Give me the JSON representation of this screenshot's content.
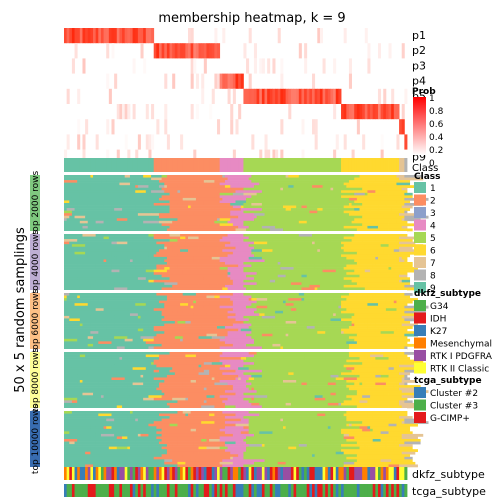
{
  "chart_data": {
    "type": "heatmap",
    "title": "membership heatmap, k = 9",
    "y_axis_title": "50 x 5 random samplings",
    "membership_rows": [
      "p1",
      "p2",
      "p3",
      "p4",
      "p5",
      "p6",
      "p7",
      "p8",
      "p9"
    ],
    "class_row_label": "Class",
    "sampling_groups": [
      {
        "label": "top 2000 rows",
        "color": "#7FC97F"
      },
      {
        "label": "top 4000 rows",
        "color": "#BEAED4"
      },
      {
        "label": "top 6000 rows",
        "color": "#FDC086"
      },
      {
        "label": "top 8000 rows",
        "color": "#FFFF99"
      },
      {
        "label": "top 10000 rows",
        "color": "#386CB0"
      }
    ],
    "class_segments": [
      {
        "cls": 1,
        "share": 0.26
      },
      {
        "cls": 2,
        "share": 0.19
      },
      {
        "cls": 4,
        "share": 0.07
      },
      {
        "cls": 5,
        "share": 0.29
      },
      {
        "cls": 6,
        "share": 0.17
      },
      {
        "cls": 7,
        "share": 0.015
      },
      {
        "cls": 8,
        "share": 0.005
      }
    ],
    "prob_legend": {
      "title": "Prob",
      "ticks": [
        "1",
        "0.8",
        "0.6",
        "0.4",
        "0.2",
        "0"
      ],
      "low_color": "#FFFFFF",
      "high_color": "#FF0000"
    },
    "class_legend": {
      "title": "Class",
      "items": [
        {
          "label": "1",
          "color": "#66C2A5"
        },
        {
          "label": "2",
          "color": "#FC8D62"
        },
        {
          "label": "3",
          "color": "#8DA0CB"
        },
        {
          "label": "4",
          "color": "#E78AC3"
        },
        {
          "label": "5",
          "color": "#A6D854"
        },
        {
          "label": "6",
          "color": "#FFD92F"
        },
        {
          "label": "7",
          "color": "#E5C494"
        },
        {
          "label": "8",
          "color": "#B3B3B3"
        },
        {
          "label": "9",
          "color": "#66C2A5"
        }
      ]
    },
    "dkfz_legend": {
      "title": "dkfz_subtype",
      "items": [
        {
          "label": "G34",
          "color": "#4DAF4A"
        },
        {
          "label": "IDH",
          "color": "#E41A1C"
        },
        {
          "label": "K27",
          "color": "#377EB8"
        },
        {
          "label": "Mesenchymal",
          "color": "#FF7F00"
        },
        {
          "label": "RTK I PDGFRA",
          "color": "#984EA3"
        },
        {
          "label": "RTK II Classic",
          "color": "#FFFF33"
        }
      ]
    },
    "tcga_legend": {
      "title": "tcga_subtype",
      "items": [
        {
          "label": "Cluster #2",
          "color": "#377EB8"
        },
        {
          "label": "Cluster #3",
          "color": "#4DAF4A"
        },
        {
          "label": "G-CIMP+",
          "color": "#E41A1C"
        }
      ]
    },
    "bottom_annotations": [
      "dkfz_subtype",
      "tcga_subtype"
    ]
  }
}
